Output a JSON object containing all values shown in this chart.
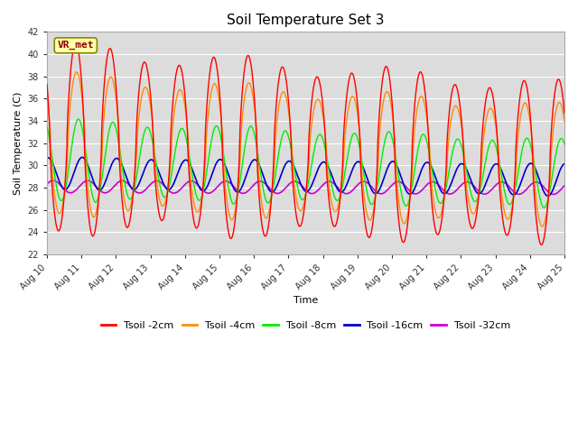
{
  "title": "Soil Temperature Set 3",
  "xlabel": "Time",
  "ylabel": "Soil Temperature (C)",
  "ylim": [
    22,
    42
  ],
  "yticks": [
    22,
    24,
    26,
    28,
    30,
    32,
    34,
    36,
    38,
    40,
    42
  ],
  "x_start": 10,
  "x_end": 25,
  "x_ticks": [
    10,
    11,
    12,
    13,
    14,
    15,
    16,
    17,
    18,
    19,
    20,
    21,
    22,
    23,
    24,
    25
  ],
  "x_tick_labels": [
    "Aug 10",
    "Aug 11",
    "Aug 12",
    "Aug 13",
    "Aug 14",
    "Aug 15",
    "Aug 16",
    "Aug 17",
    "Aug 18",
    "Aug 19",
    "Aug 20",
    "Aug 21",
    "Aug 22",
    "Aug 23",
    "Aug 24",
    "Aug 25"
  ],
  "colors": {
    "Tsoil -2cm": "#FF0000",
    "Tsoil -4cm": "#FF8C00",
    "Tsoil -8cm": "#00EE00",
    "Tsoil -16cm": "#0000CC",
    "Tsoil -32cm": "#CC00CC"
  },
  "plot_bg": "#DCDCDC",
  "fig_bg": "#FFFFFF",
  "grid_color": "#FFFFFF",
  "annotation_text": "VR_met",
  "annotation_bg": "#FFFFAA",
  "annotation_border": "#888800",
  "annotation_text_color": "#8B0000"
}
